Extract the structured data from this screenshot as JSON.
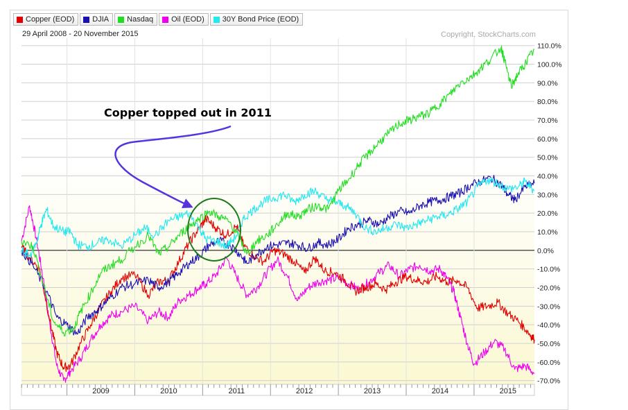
{
  "legend": [
    {
      "label": "Copper (EOD)",
      "color": "#e00000"
    },
    {
      "label": "DJIA",
      "color": "#1a0fb0"
    },
    {
      "label": "Nasdaq",
      "color": "#22dd22"
    },
    {
      "label": "Oil (EOD)",
      "color": "#ee00ee"
    },
    {
      "label": "30Y Bond Price (EOD)",
      "color": "#22e8f0"
    }
  ],
  "date_range": "29 April 2008 - 20 November 2015",
  "copyright": "Copyright, StockCharts.com",
  "annotation": "Copper topped out in 2011",
  "chart_data": {
    "type": "line",
    "x_range": [
      2008.33,
      2015.89
    ],
    "ylim": [
      -72,
      114
    ],
    "y_ticks": [
      -70,
      -60,
      -50,
      -40,
      -30,
      -20,
      -10,
      0,
      10,
      20,
      30,
      40,
      50,
      60,
      70,
      80,
      90,
      100,
      110
    ],
    "y_tick_labels": [
      "-70.0%",
      "-60.0%",
      "-50.0%",
      "-40.0%",
      "-30.0%",
      "-20.0%",
      "-10.0%",
      "0.0%",
      "10.0%",
      "20.0%",
      "30.0%",
      "40.0%",
      "50.0%",
      "60.0%",
      "70.0%",
      "80.0%",
      "90.0%",
      "100.0%",
      "110.0%"
    ],
    "x_ticks": [
      2009,
      2010,
      2011,
      2012,
      2013,
      2014,
      2015
    ],
    "x_tick_labels": [
      "2009",
      "2010",
      "2011",
      "2012",
      "2013",
      "2014",
      "2015"
    ],
    "grid": true,
    "legend_position": "top-left",
    "series": [
      {
        "name": "Copper (EOD)",
        "color": "#e00000",
        "x": [
          2008.33,
          2008.45,
          2008.6,
          2008.75,
          2008.85,
          2008.95,
          2009.05,
          2009.2,
          2009.35,
          2009.5,
          2009.65,
          2009.8,
          2010.0,
          2010.2,
          2010.35,
          2010.5,
          2010.65,
          2010.8,
          2010.95,
          2011.05,
          2011.2,
          2011.35,
          2011.5,
          2011.6,
          2011.75,
          2011.9,
          2012.05,
          2012.2,
          2012.35,
          2012.5,
          2012.65,
          2012.8,
          2012.95,
          2013.1,
          2013.25,
          2013.4,
          2013.55,
          2013.7,
          2013.85,
          2014.0,
          2014.15,
          2014.3,
          2014.45,
          2014.6,
          2014.75,
          2014.9,
          2015.05,
          2015.2,
          2015.35,
          2015.5,
          2015.65,
          2015.8,
          2015.89
        ],
        "y": [
          2,
          -4,
          -10,
          -38,
          -55,
          -63,
          -62,
          -50,
          -40,
          -30,
          -22,
          -15,
          -13,
          -24,
          -17,
          -16,
          -6,
          4,
          12,
          17,
          12,
          8,
          13,
          3,
          -3,
          -6,
          0,
          -2,
          -6,
          -12,
          -4,
          -11,
          -12,
          -16,
          -22,
          -20,
          -18,
          -21,
          -17,
          -14,
          -16,
          -17,
          -14,
          -17,
          -16,
          -20,
          -31,
          -30,
          -28,
          -34,
          -38,
          -44,
          -48
        ]
      },
      {
        "name": "DJIA",
        "color": "#1a0fb0",
        "x": [
          2008.33,
          2008.5,
          2008.7,
          2008.85,
          2009.0,
          2009.15,
          2009.3,
          2009.45,
          2009.6,
          2009.8,
          2010.0,
          2010.2,
          2010.35,
          2010.5,
          2010.65,
          2010.8,
          2010.95,
          2011.1,
          2011.25,
          2011.4,
          2011.55,
          2011.65,
          2011.8,
          2011.95,
          2012.1,
          2012.25,
          2012.4,
          2012.55,
          2012.7,
          2012.85,
          2013.0,
          2013.15,
          2013.3,
          2013.45,
          2013.6,
          2013.75,
          2013.9,
          2014.05,
          2014.2,
          2014.35,
          2014.5,
          2014.65,
          2014.8,
          2014.95,
          2015.1,
          2015.25,
          2015.4,
          2015.5,
          2015.6,
          2015.75,
          2015.89
        ],
        "y": [
          0,
          -8,
          -22,
          -36,
          -40,
          -45,
          -36,
          -32,
          -27,
          -20,
          -18,
          -16,
          -20,
          -17,
          -12,
          -7,
          -3,
          3,
          5,
          3,
          -2,
          -7,
          -2,
          2,
          3,
          4,
          3,
          1,
          4,
          3,
          6,
          12,
          14,
          16,
          14,
          18,
          21,
          20,
          24,
          26,
          27,
          29,
          31,
          35,
          37,
          39,
          35,
          30,
          27,
          34,
          36
        ]
      },
      {
        "name": "Nasdaq",
        "color": "#22dd22",
        "x": [
          2008.33,
          2008.5,
          2008.65,
          2008.8,
          2008.95,
          2009.1,
          2009.2,
          2009.35,
          2009.5,
          2009.65,
          2009.8,
          2010.0,
          2010.2,
          2010.35,
          2010.5,
          2010.65,
          2010.8,
          2010.95,
          2011.1,
          2011.25,
          2011.4,
          2011.55,
          2011.65,
          2011.8,
          2011.95,
          2012.1,
          2012.25,
          2012.4,
          2012.55,
          2012.7,
          2012.85,
          2013.0,
          2013.15,
          2013.3,
          2013.45,
          2013.6,
          2013.75,
          2013.9,
          2014.05,
          2014.2,
          2014.35,
          2014.5,
          2014.65,
          2014.8,
          2014.95,
          2015.1,
          2015.25,
          2015.4,
          2015.45,
          2015.55,
          2015.65,
          2015.75,
          2015.89
        ],
        "y": [
          5,
          2,
          -18,
          -38,
          -44,
          -42,
          -33,
          -23,
          -12,
          -8,
          -5,
          2,
          8,
          -2,
          2,
          8,
          13,
          17,
          21,
          18,
          15,
          6,
          -2,
          5,
          8,
          14,
          20,
          18,
          22,
          24,
          22,
          32,
          38,
          46,
          52,
          58,
          63,
          68,
          70,
          72,
          74,
          79,
          84,
          90,
          93,
          98,
          103,
          109,
          102,
          88,
          95,
          100,
          108
        ]
      },
      {
        "name": "Oil (EOD)",
        "color": "#ee00ee",
        "x": [
          2008.33,
          2008.45,
          2008.55,
          2008.65,
          2008.75,
          2008.85,
          2008.95,
          2009.05,
          2009.2,
          2009.35,
          2009.5,
          2009.65,
          2009.8,
          2010.0,
          2010.2,
          2010.35,
          2010.5,
          2010.65,
          2010.8,
          2010.95,
          2011.05,
          2011.2,
          2011.35,
          2011.5,
          2011.65,
          2011.8,
          2011.95,
          2012.1,
          2012.25,
          2012.4,
          2012.55,
          2012.7,
          2012.85,
          2013.0,
          2013.15,
          2013.3,
          2013.45,
          2013.6,
          2013.75,
          2013.9,
          2014.05,
          2014.2,
          2014.35,
          2014.5,
          2014.6,
          2014.7,
          2014.8,
          2014.9,
          2015.0,
          2015.15,
          2015.3,
          2015.45,
          2015.6,
          2015.75,
          2015.89
        ],
        "y": [
          5,
          24,
          6,
          -15,
          -40,
          -62,
          -70,
          -65,
          -58,
          -48,
          -40,
          -35,
          -33,
          -30,
          -38,
          -33,
          -36,
          -27,
          -24,
          -20,
          -18,
          -13,
          -4,
          -14,
          -24,
          -20,
          -12,
          -5,
          -14,
          -27,
          -20,
          -17,
          -16,
          -15,
          -18,
          -21,
          -17,
          -12,
          -8,
          -14,
          -10,
          -8,
          -11,
          -10,
          -15,
          -22,
          -36,
          -50,
          -61,
          -55,
          -49,
          -53,
          -64,
          -62,
          -66
        ]
      },
      {
        "name": "30Y Bond Price (EOD)",
        "color": "#22e8f0",
        "x": [
          2008.33,
          2008.45,
          2008.55,
          2008.62,
          2008.7,
          2008.8,
          2008.95,
          2009.05,
          2009.15,
          2009.3,
          2009.45,
          2009.6,
          2009.8,
          2010.0,
          2010.15,
          2010.3,
          2010.5,
          2010.65,
          2010.8,
          2010.95,
          2011.05,
          2011.2,
          2011.35,
          2011.5,
          2011.6,
          2011.75,
          2011.9,
          2012.05,
          2012.2,
          2012.35,
          2012.5,
          2012.65,
          2012.8,
          2012.95,
          2013.1,
          2013.25,
          2013.4,
          2013.55,
          2013.7,
          2013.85,
          2014.0,
          2014.15,
          2014.3,
          2014.45,
          2014.6,
          2014.75,
          2014.9,
          2015.05,
          2015.2,
          2015.35,
          2015.5,
          2015.65,
          2015.75,
          2015.89
        ],
        "y": [
          0,
          -3,
          4,
          14,
          22,
          13,
          10,
          10,
          3,
          2,
          4,
          6,
          2,
          8,
          12,
          8,
          16,
          18,
          20,
          12,
          6,
          5,
          2,
          8,
          17,
          22,
          26,
          28,
          30,
          26,
          30,
          32,
          28,
          26,
          24,
          20,
          12,
          10,
          12,
          14,
          12,
          14,
          16,
          18,
          19,
          22,
          26,
          34,
          38,
          36,
          33,
          34,
          37,
          32
        ]
      }
    ]
  }
}
